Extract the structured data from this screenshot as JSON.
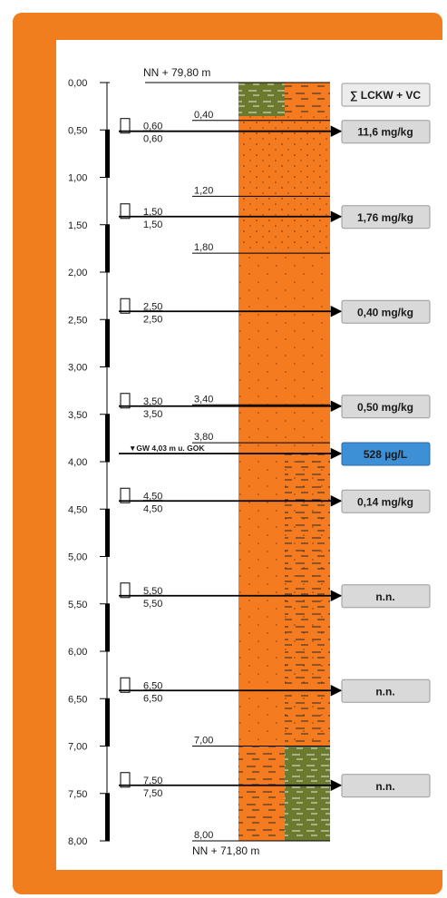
{
  "header": {
    "top_elevation": "NN + 79,80 m",
    "bottom_elevation": "NN + 71,80 m",
    "result_heading": "∑ LCKW + VC"
  },
  "depth_scale": [
    "0,00",
    "0,50",
    "1,00",
    "1,50",
    "2,00",
    "2,50",
    "3,00",
    "3,50",
    "4,00",
    "4,50",
    "5,00",
    "5,50",
    "6,00",
    "6,50",
    "7,00",
    "7,50",
    "8,00"
  ],
  "layer_boundaries": [
    {
      "label": "0,40",
      "depth": 0.4
    },
    {
      "label": "1,20",
      "depth": 1.2
    },
    {
      "label": "1,80",
      "depth": 1.8
    },
    {
      "label": "3,40",
      "depth": 3.4
    },
    {
      "label": "3,80",
      "depth": 3.8
    },
    {
      "label": "7,00",
      "depth": 7.0
    },
    {
      "label": "8,00",
      "depth": 8.0
    }
  ],
  "samples": [
    {
      "top": "0,60",
      "bottom": "0,60",
      "depth": 0.6,
      "result": "11,6 mg/kg"
    },
    {
      "top": "1,50",
      "bottom": "1,50",
      "depth": 1.5,
      "result": "1,76 mg/kg"
    },
    {
      "top": "2,50",
      "bottom": "2,50",
      "depth": 2.5,
      "result": "0,40 mg/kg"
    },
    {
      "top": "3,50",
      "bottom": "3,50",
      "depth": 3.5,
      "result": "0,50 mg/kg"
    },
    {
      "top": "4,50",
      "bottom": "4,50",
      "depth": 4.5,
      "result": "0,14 mg/kg"
    },
    {
      "top": "5,50",
      "bottom": "5,50",
      "depth": 5.5,
      "result": "n.n."
    },
    {
      "top": "6,50",
      "bottom": "6,50",
      "depth": 6.5,
      "result": "n.n."
    },
    {
      "top": "7,50",
      "bottom": "7,50",
      "depth": 7.5,
      "result": "n.n."
    }
  ],
  "groundwater": {
    "label": "▼GW 4,03 m u. GOK",
    "depth": 4.0,
    "result": "528 µg/L"
  },
  "colors": {
    "frame": "#f07d1e",
    "sand": "#f47b20",
    "topsoil": "#6b7a2e",
    "result_box": "#d9d9d9",
    "water_box": "#3d8fd6"
  }
}
